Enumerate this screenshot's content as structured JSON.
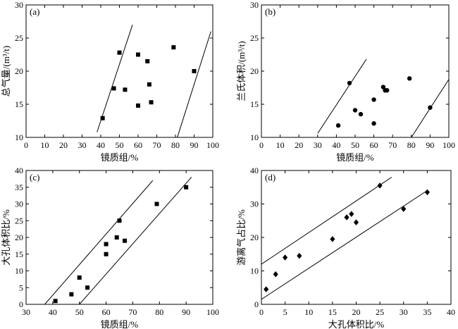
{
  "chart_data": [
    {
      "panel_label": "(a)",
      "type": "scatter",
      "marker": "square",
      "xlabel": "镜质组/%",
      "ylabel": "总气量/(m³/t)",
      "xlim": [
        0,
        100
      ],
      "ylim": [
        10,
        30
      ],
      "xticks": [
        0,
        10,
        20,
        30,
        40,
        50,
        60,
        70,
        80,
        90,
        100
      ],
      "yticks": [
        10,
        15,
        20,
        25,
        30
      ],
      "points": [
        {
          "x": 41,
          "y": 12.9
        },
        {
          "x": 47,
          "y": 17.4
        },
        {
          "x": 50,
          "y": 22.8
        },
        {
          "x": 53,
          "y": 17.2
        },
        {
          "x": 60,
          "y": 22.5
        },
        {
          "x": 60,
          "y": 14.8
        },
        {
          "x": 65,
          "y": 21.5
        },
        {
          "x": 66,
          "y": 18.0
        },
        {
          "x": 67,
          "y": 15.3
        },
        {
          "x": 79,
          "y": 23.6
        },
        {
          "x": 90,
          "y": 20.0
        }
      ],
      "lines": [
        {
          "x1": 38,
          "y1": 10.8,
          "x2": 57,
          "y2": 27.0
        },
        {
          "x1": 81,
          "y1": 10.0,
          "x2": 99,
          "y2": 26.0
        }
      ]
    },
    {
      "panel_label": "(b)",
      "type": "scatter",
      "marker": "circle",
      "xlabel": "镜质组/%",
      "ylabel": "兰氏体积/(m³/t)",
      "xlim": [
        0,
        100
      ],
      "ylim": [
        10,
        30
      ],
      "xticks": [
        0,
        10,
        20,
        30,
        40,
        50,
        60,
        70,
        80,
        90,
        100
      ],
      "yticks": [
        10,
        15,
        20,
        25,
        30
      ],
      "points": [
        {
          "x": 41,
          "y": 11.8
        },
        {
          "x": 47,
          "y": 18.2
        },
        {
          "x": 50,
          "y": 14.1
        },
        {
          "x": 53,
          "y": 13.5
        },
        {
          "x": 60,
          "y": 15.7
        },
        {
          "x": 60,
          "y": 12.1
        },
        {
          "x": 65,
          "y": 17.6
        },
        {
          "x": 66,
          "y": 17.1
        },
        {
          "x": 67,
          "y": 17.1
        },
        {
          "x": 79,
          "y": 18.9
        },
        {
          "x": 90,
          "y": 14.5
        }
      ],
      "lines": [
        {
          "x1": 30,
          "y1": 10.6,
          "x2": 56,
          "y2": 21.8
        },
        {
          "x1": 80,
          "y1": 10.0,
          "x2": 101,
          "y2": 19.2
        }
      ]
    },
    {
      "panel_label": "(c)",
      "type": "scatter",
      "marker": "square",
      "xlabel": "镜质组/%",
      "ylabel": "大孔体积比/%",
      "xlim": [
        30,
        100
      ],
      "ylim": [
        0,
        40
      ],
      "xticks": [
        30,
        40,
        50,
        60,
        70,
        80,
        90,
        100
      ],
      "yticks": [
        0,
        5,
        10,
        15,
        20,
        25,
        30,
        35,
        40
      ],
      "points": [
        {
          "x": 41,
          "y": 1.0
        },
        {
          "x": 47,
          "y": 3.0
        },
        {
          "x": 50,
          "y": 8.0
        },
        {
          "x": 53,
          "y": 5.0
        },
        {
          "x": 60,
          "y": 18.0
        },
        {
          "x": 60,
          "y": 15.0
        },
        {
          "x": 64,
          "y": 20.0
        },
        {
          "x": 65,
          "y": 25.0
        },
        {
          "x": 67,
          "y": 19.0
        },
        {
          "x": 79,
          "y": 30.0
        },
        {
          "x": 90,
          "y": 35.0
        }
      ],
      "lines": [
        {
          "x1": 37,
          "y1": 0.0,
          "x2": 77.5,
          "y2": 37.0
        },
        {
          "x1": 50,
          "y1": 0.0,
          "x2": 92,
          "y2": 38.0
        }
      ]
    },
    {
      "panel_label": "(d)",
      "type": "scatter",
      "marker": "diamond",
      "xlabel": "大孔体积比/%",
      "ylabel": "游离气占比/%",
      "xlim": [
        0,
        40
      ],
      "ylim": [
        0,
        40
      ],
      "xticks": [
        0,
        5,
        10,
        15,
        20,
        25,
        30,
        35,
        40
      ],
      "yticks": [
        0,
        10,
        20,
        30,
        40
      ],
      "points": [
        {
          "x": 1,
          "y": 4.5
        },
        {
          "x": 3,
          "y": 9.0
        },
        {
          "x": 5,
          "y": 14.0
        },
        {
          "x": 8,
          "y": 14.5
        },
        {
          "x": 15,
          "y": 19.5
        },
        {
          "x": 18,
          "y": 26.0
        },
        {
          "x": 19,
          "y": 27.0
        },
        {
          "x": 20,
          "y": 24.5
        },
        {
          "x": 25,
          "y": 35.5
        },
        {
          "x": 30,
          "y": 28.5
        },
        {
          "x": 35,
          "y": 33.5
        }
      ],
      "lines": [
        {
          "x1": 0,
          "y1": 12.0,
          "x2": 27.5,
          "y2": 38.0
        },
        {
          "x1": 0,
          "y1": 1.5,
          "x2": 35,
          "y2": 34.0
        }
      ]
    }
  ]
}
